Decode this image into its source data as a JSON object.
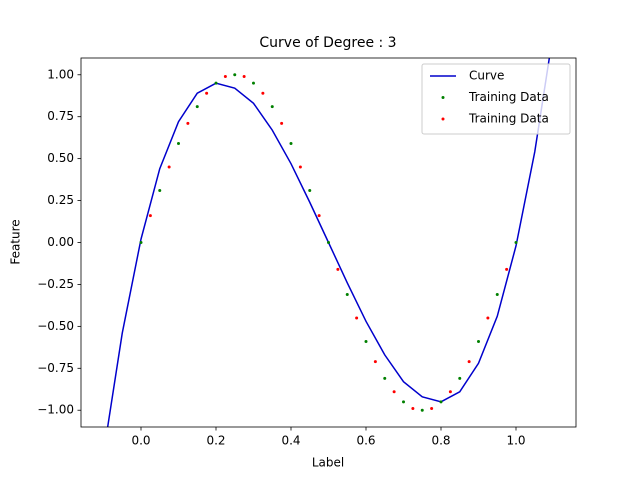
{
  "chart_data": {
    "type": "line_scatter",
    "title": "Curve of Degree : 3",
    "x_label": "Label",
    "y_label": "Feature",
    "xlim": [
      -0.16,
      1.16
    ],
    "ylim": [
      -1.1,
      1.1
    ],
    "xticks": [
      {
        "value": 0,
        "label": "0.0"
      },
      {
        "value": 0.2,
        "label": "0.2"
      },
      {
        "value": 0.4,
        "label": "0.4"
      },
      {
        "value": 0.6,
        "label": "0.6"
      },
      {
        "value": 0.8,
        "label": "0.8"
      },
      {
        "value": 1,
        "label": "1.0"
      }
    ],
    "yticks": [
      {
        "value": -1,
        "label": "−1.00"
      },
      {
        "value": -0.75,
        "label": "−0.75"
      },
      {
        "value": -0.5,
        "label": "−0.50"
      },
      {
        "value": -0.25,
        "label": "−0.25"
      },
      {
        "value": 0,
        "label": "0.00"
      },
      {
        "value": 0.25,
        "label": "0.25"
      },
      {
        "value": 0.5,
        "label": "0.50"
      },
      {
        "value": 0.75,
        "label": "0.75"
      },
      {
        "value": 1,
        "label": "1.00"
      }
    ],
    "legend": "upper right",
    "series": [
      {
        "name": "Curve",
        "kind": "line",
        "color": "#0000cc",
        "x": [
          -0.1,
          -0.05,
          0,
          0.05,
          0.1,
          0.15,
          0.2,
          0.25,
          0.3,
          0.35,
          0.4,
          0.45,
          0.5,
          0.55,
          0.6,
          0.65,
          0.7,
          0.75,
          0.8,
          0.85,
          0.9,
          0.95,
          1.0,
          1.05,
          1.1
        ],
        "values": [
          -1.26,
          -0.54,
          0.02,
          0.44,
          0.72,
          0.89,
          0.95,
          0.92,
          0.83,
          0.67,
          0.47,
          0.24,
          0,
          -0.24,
          -0.47,
          -0.67,
          -0.83,
          -0.92,
          -0.95,
          -0.89,
          -0.72,
          -0.44,
          -0.02,
          0.54,
          1.26
        ]
      },
      {
        "name": "Training Data",
        "kind": "scatter",
        "color": "#008000",
        "x": [
          0,
          0.05,
          0.1,
          0.15,
          0.2,
          0.25,
          0.3,
          0.35,
          0.4,
          0.45,
          0.5,
          0.55,
          0.6,
          0.65,
          0.7,
          0.75,
          0.8,
          0.85,
          0.9,
          0.95,
          1.0
        ],
        "values": [
          0,
          0.31,
          0.59,
          0.81,
          0.95,
          1,
          0.95,
          0.81,
          0.59,
          0.31,
          0,
          -0.31,
          -0.59,
          -0.81,
          -0.95,
          -1,
          -0.95,
          -0.81,
          -0.59,
          -0.31,
          0
        ]
      },
      {
        "name": "Training Data",
        "kind": "scatter",
        "color": "#ff0000",
        "x": [
          0.025,
          0.075,
          0.125,
          0.175,
          0.225,
          0.275,
          0.325,
          0.375,
          0.425,
          0.475,
          0.525,
          0.575,
          0.625,
          0.675,
          0.725,
          0.775,
          0.825,
          0.875,
          0.925,
          0.975
        ],
        "values": [
          0.16,
          0.45,
          0.71,
          0.89,
          0.99,
          0.99,
          0.89,
          0.71,
          0.45,
          0.16,
          -0.16,
          -0.45,
          -0.71,
          -0.89,
          -0.99,
          -0.99,
          -0.89,
          -0.71,
          -0.45,
          -0.16
        ]
      }
    ]
  }
}
